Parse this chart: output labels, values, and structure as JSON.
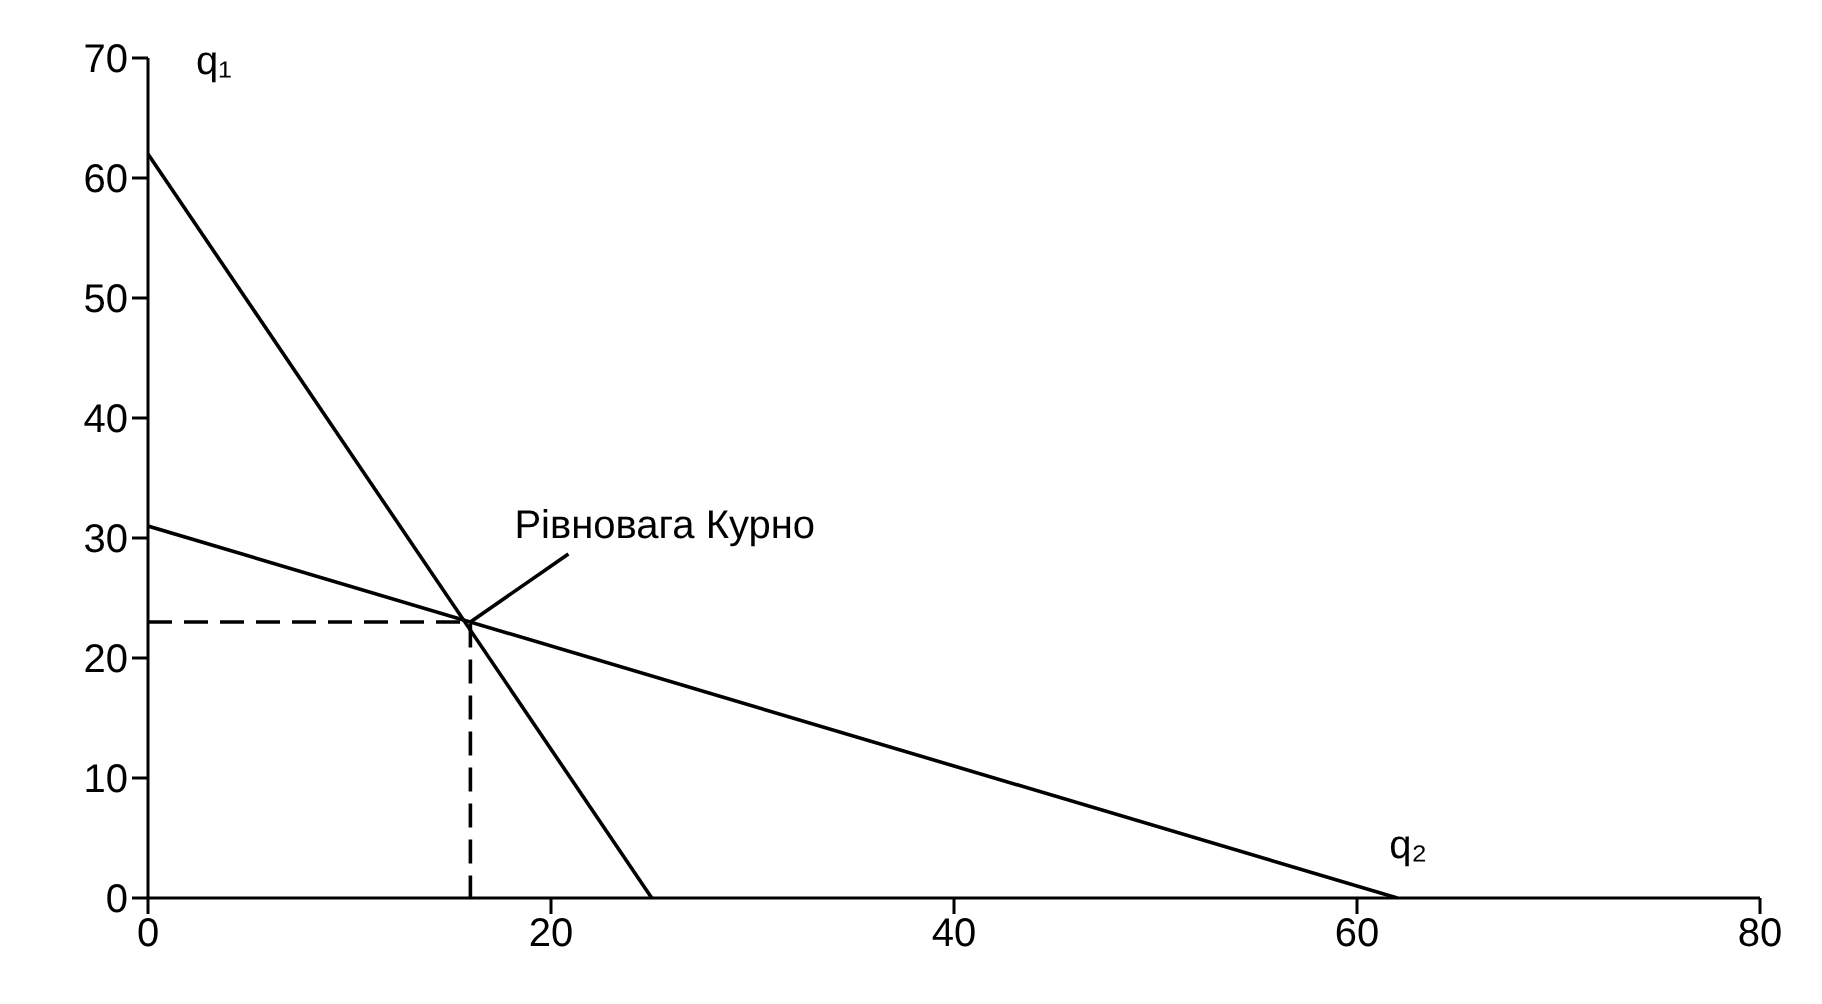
{
  "chart_data": {
    "type": "line",
    "xlim": [
      0,
      80
    ],
    "xticks": [
      0,
      20,
      40,
      60,
      80
    ],
    "ylim": [
      0,
      70
    ],
    "yticks": [
      0,
      10,
      20,
      30,
      40,
      50,
      60,
      70
    ],
    "grid": false,
    "legend": false,
    "marker": "none",
    "annotations": [
      {
        "text": "Рівновага Курно",
        "x": 16,
        "y": 23
      }
    ],
    "series": [
      {
        "name": "q₁",
        "color": "#000000",
        "x": [
          0,
          25
        ],
        "values": [
          62,
          0
        ],
        "line_style": "solid"
      },
      {
        "name": "q₂",
        "color": "#000000",
        "x": [
          0,
          62
        ],
        "values": [
          31,
          0
        ],
        "line_style": "solid"
      },
      {
        "color": "#000000",
        "x": [
          0,
          16,
          16
        ],
        "values": [
          23,
          23,
          0
        ],
        "line_style": "dashed"
      }
    ]
  }
}
